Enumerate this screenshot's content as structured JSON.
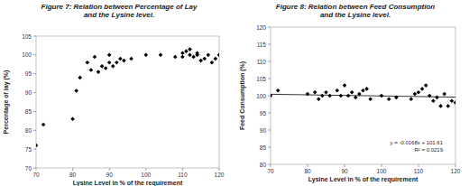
{
  "chart_data": [
    {
      "type": "scatter",
      "title": [
        "Figure 7: Relation between Percentage of Lay",
        "and the Lysine level."
      ],
      "x_label": "Lysine Level in % of the requirement",
      "y_label": "Percentage of lay (%)",
      "x": [
        70,
        72,
        80,
        81,
        82,
        84,
        85,
        86,
        87,
        88,
        89,
        90,
        90,
        91,
        92,
        93,
        94,
        96,
        100,
        104,
        108,
        110,
        110,
        111,
        112,
        112,
        113,
        114,
        114,
        115,
        116,
        117,
        118,
        119,
        120
      ],
      "values": [
        76,
        81.5,
        83,
        90.5,
        94,
        98,
        96,
        99.5,
        95.5,
        97,
        96.5,
        100,
        98,
        97,
        98,
        99,
        98.5,
        99,
        100,
        100,
        99.5,
        100.5,
        99.5,
        101,
        100,
        101.5,
        99.5,
        100,
        100.5,
        98.5,
        99,
        100,
        98,
        99,
        100
      ],
      "xlim": [
        70,
        120
      ],
      "xticks": [
        70,
        80,
        90,
        100,
        110,
        120
      ],
      "ylim": [
        70,
        105
      ],
      "yticks": [
        70,
        75,
        80,
        85,
        90,
        95,
        100,
        105
      ],
      "color": "#000000",
      "marker": "diamond",
      "grid": false
    },
    {
      "type": "scatter",
      "title": [
        "Figure 8: Relation between Feed Consumption",
        "and the Lysine level."
      ],
      "x_label": "Lysine Level in % of the requirement",
      "y_label": "Feed Consumption (%)",
      "x": [
        70,
        72,
        80,
        82,
        83,
        84,
        85,
        86,
        88,
        89,
        90,
        91,
        92,
        93,
        94,
        95,
        96,
        97,
        100,
        102,
        104,
        108,
        109,
        110,
        111,
        112,
        113,
        114,
        115,
        116,
        117,
        118,
        119,
        120
      ],
      "values": [
        100,
        101.5,
        100.5,
        101,
        99,
        100,
        101,
        100,
        101.5,
        100,
        103,
        100,
        101,
        99.5,
        100.5,
        101.5,
        102,
        99,
        100,
        99,
        99.5,
        99,
        100.5,
        101,
        102,
        103,
        100,
        98.5,
        99.5,
        97,
        100.5,
        97,
        98.5,
        98
      ],
      "trendline": {
        "x": [
          70,
          120
        ],
        "values": [
          100.43,
          99.59
        ]
      },
      "annotations": [
        "y = -0.0168x + 101.61",
        "R² = 0.0219"
      ],
      "xlim": [
        70,
        120
      ],
      "xticks": [
        70,
        80,
        90,
        100,
        110,
        120
      ],
      "ylim": [
        80,
        120
      ],
      "yticks": [
        80,
        85,
        90,
        95,
        100,
        105,
        110,
        115,
        120
      ],
      "color": "#000000",
      "marker": "diamond",
      "grid": false
    }
  ]
}
